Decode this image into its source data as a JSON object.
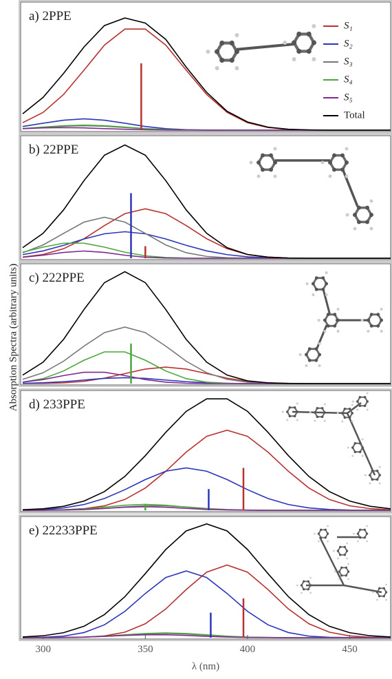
{
  "ylabel": "Absorption Spectra (arbitrary units)",
  "chart_data": [
    {
      "type": "line",
      "title": "a) 2PPE",
      "legend": "upper right",
      "x": [
        290,
        300,
        310,
        320,
        330,
        340,
        350,
        360,
        370,
        380,
        390,
        400,
        410,
        420,
        430,
        440,
        450,
        460,
        470
      ],
      "xlim": [
        289,
        470
      ],
      "ylim": [
        0,
        1
      ],
      "series": [
        {
          "name": "S₁",
          "color": "#b8312f",
          "values": [
            0.059,
            0.141,
            0.283,
            0.476,
            0.675,
            0.802,
            0.802,
            0.675,
            0.476,
            0.283,
            0.141,
            0.059,
            0.021,
            0.006,
            0.002,
            0,
            0,
            0,
            0
          ]
        },
        {
          "name": "S₂",
          "color": "#2a35b8",
          "values": [
            0.029,
            0.055,
            0.079,
            0.09,
            0.079,
            0.055,
            0.029,
            0.012,
            0.004,
            0.001,
            0,
            0,
            0,
            0,
            0,
            0,
            0,
            0,
            0
          ]
        },
        {
          "name": "S₃",
          "color": "#777777",
          "values": [
            0.011,
            0.021,
            0.031,
            0.035,
            0.031,
            0.021,
            0.011,
            0.005,
            0.002,
            0,
            0,
            0,
            0,
            0,
            0,
            0,
            0,
            0,
            0
          ]
        },
        {
          "name": "S₄",
          "color": "#4aa63a",
          "values": [
            0.013,
            0.024,
            0.035,
            0.04,
            0.035,
            0.024,
            0.013,
            0.005,
            0.002,
            0,
            0,
            0,
            0,
            0,
            0,
            0,
            0,
            0,
            0
          ]
        },
        {
          "name": "S₅",
          "color": "#7d2a8e",
          "values": [
            0.012,
            0.018,
            0.02,
            0.018,
            0.012,
            0.007,
            0.003,
            0.001,
            0,
            0,
            0,
            0,
            0,
            0,
            0,
            0,
            0,
            0,
            0
          ]
        },
        {
          "name": "Total",
          "color": "#000000",
          "values": [
            0.13,
            0.26,
            0.45,
            0.66,
            0.83,
            0.89,
            0.85,
            0.72,
            0.5,
            0.3,
            0.15,
            0.065,
            0.024,
            0.007,
            0.002,
            0,
            0,
            0,
            0
          ]
        }
      ],
      "sticks": {
        "x": [
          348
        ],
        "values": [
          0.53
        ],
        "colors": [
          "#b8312f"
        ]
      }
    },
    {
      "type": "line",
      "title": "b) 22PPE",
      "x": [
        290,
        300,
        310,
        320,
        330,
        340,
        350,
        360,
        370,
        380,
        390,
        400,
        410,
        420,
        430,
        440,
        450,
        460,
        470
      ],
      "xlim": [
        289,
        470
      ],
      "ylim": [
        0,
        1
      ],
      "series": [
        {
          "color": "#b8312f",
          "values": [
            0.01,
            0.031,
            0.079,
            0.162,
            0.271,
            0.37,
            0.41,
            0.37,
            0.271,
            0.162,
            0.079,
            0.031,
            0.01,
            0.002,
            0,
            0,
            0,
            0,
            0
          ]
        },
        {
          "color": "#2a35b8",
          "values": [
            0.03,
            0.061,
            0.107,
            0.16,
            0.203,
            0.22,
            0.203,
            0.16,
            0.107,
            0.061,
            0.03,
            0.012,
            0.004,
            0.001,
            0,
            0,
            0,
            0,
            0
          ]
        },
        {
          "color": "#777777",
          "values": [
            0.046,
            0.11,
            0.206,
            0.3,
            0.34,
            0.3,
            0.206,
            0.11,
            0.046,
            0.015,
            0.004,
            0.001,
            0,
            0,
            0,
            0,
            0,
            0,
            0
          ]
        },
        {
          "color": "#4aa63a",
          "values": [
            0.05,
            0.092,
            0.125,
            0.125,
            0.092,
            0.05,
            0.02,
            0.006,
            0.001,
            0,
            0,
            0,
            0,
            0,
            0,
            0,
            0,
            0,
            0
          ]
        },
        {
          "color": "#7d2a8e",
          "values": [
            0.008,
            0.025,
            0.048,
            0.06,
            0.048,
            0.025,
            0.008,
            0.002,
            0,
            0,
            0,
            0,
            0,
            0,
            0,
            0,
            0,
            0,
            0
          ]
        },
        {
          "color": "#000000",
          "values": [
            0.088,
            0.207,
            0.401,
            0.644,
            0.855,
            0.94,
            0.855,
            0.644,
            0.401,
            0.207,
            0.088,
            0.031,
            0.009,
            0.002,
            0,
            0,
            0,
            0,
            0
          ]
        }
      ],
      "sticks": {
        "x": [
          343,
          350
        ],
        "values": [
          0.54,
          0.1
        ],
        "colors": [
          "#2a35b8",
          "#b8312f"
        ]
      }
    },
    {
      "type": "line",
      "title": "c) 222PPE",
      "x": [
        290,
        300,
        310,
        320,
        330,
        340,
        350,
        360,
        370,
        380,
        390,
        400,
        410,
        420,
        430,
        440,
        450,
        460,
        470
      ],
      "xlim": [
        289,
        470
      ],
      "ylim": [
        0,
        1
      ],
      "series": [
        {
          "color": "#b8312f",
          "values": [
            0.001,
            0.002,
            0.006,
            0.019,
            0.046,
            0.085,
            0.123,
            0.14,
            0.123,
            0.085,
            0.046,
            0.019,
            0.006,
            0.002,
            0,
            0,
            0,
            0,
            0
          ]
        },
        {
          "color": "#2a35b8",
          "values": [
            0.002,
            0.007,
            0.016,
            0.03,
            0.044,
            0.05,
            0.044,
            0.03,
            0.016,
            0.007,
            0.002,
            0,
            0,
            0,
            0,
            0,
            0,
            0,
            0
          ]
        },
        {
          "color": "#777777",
          "values": [
            0.036,
            0.092,
            0.19,
            0.318,
            0.433,
            0.48,
            0.433,
            0.318,
            0.19,
            0.092,
            0.036,
            0.012,
            0.003,
            0.001,
            0,
            0,
            0,
            0,
            0
          ]
        },
        {
          "color": "#4aa63a",
          "values": [
            0.012,
            0.042,
            0.107,
            0.198,
            0.269,
            0.269,
            0.198,
            0.107,
            0.042,
            0.012,
            0.003,
            0,
            0,
            0,
            0,
            0,
            0,
            0,
            0
          ]
        },
        {
          "color": "#7d2a8e",
          "values": [
            0.012,
            0.034,
            0.068,
            0.096,
            0.096,
            0.068,
            0.034,
            0.012,
            0.003,
            0,
            0,
            0,
            0,
            0,
            0,
            0,
            0,
            0,
            0
          ]
        },
        {
          "color": "#000000",
          "values": [
            0.072,
            0.182,
            0.375,
            0.629,
            0.857,
            0.95,
            0.857,
            0.629,
            0.375,
            0.182,
            0.072,
            0.023,
            0.006,
            0.001,
            0,
            0,
            0,
            0,
            0
          ]
        }
      ],
      "sticks": {
        "x": [
          343
        ],
        "values": [
          0.34
        ],
        "colors": [
          "#4aa63a"
        ]
      }
    },
    {
      "type": "line",
      "title": "d) 233PPE",
      "x": [
        290,
        300,
        310,
        320,
        330,
        340,
        350,
        360,
        370,
        380,
        390,
        400,
        410,
        420,
        430,
        440,
        450,
        460,
        470
      ],
      "xlim": [
        289,
        470
      ],
      "ylim": [
        0,
        1
      ],
      "series": [
        {
          "color": "#b8312f",
          "values": [
            0,
            0.001,
            0.004,
            0.014,
            0.038,
            0.092,
            0.189,
            0.331,
            0.494,
            0.628,
            0.68,
            0.628,
            0.494,
            0.331,
            0.189,
            0.092,
            0.038,
            0.014,
            0.004
          ]
        },
        {
          "color": "#2a35b8",
          "values": [
            0.002,
            0.007,
            0.02,
            0.049,
            0.1,
            0.175,
            0.261,
            0.332,
            0.36,
            0.332,
            0.261,
            0.175,
            0.1,
            0.049,
            0.02,
            0.007,
            0.002,
            0.001,
            0
          ]
        },
        {
          "color": "#777777",
          "values": [
            0,
            0,
            0.002,
            0.006,
            0.015,
            0.028,
            0.038,
            0.038,
            0.028,
            0.015,
            0.006,
            0.002,
            0,
            0,
            0,
            0,
            0,
            0,
            0
          ]
        },
        {
          "color": "#4aa63a",
          "values": [
            0,
            0.001,
            0.004,
            0.012,
            0.027,
            0.043,
            0.05,
            0.043,
            0.027,
            0.012,
            0.004,
            0.001,
            0,
            0,
            0,
            0,
            0,
            0,
            0
          ]
        },
        {
          "color": "#7d2a8e",
          "values": [
            0,
            0.001,
            0.003,
            0.007,
            0.016,
            0.026,
            0.03,
            0.026,
            0.016,
            0.007,
            0.003,
            0.001,
            0,
            0,
            0,
            0,
            0,
            0,
            0
          ]
        },
        {
          "color": "#000000",
          "values": [
            0.005,
            0.013,
            0.034,
            0.078,
            0.159,
            0.288,
            0.464,
            0.662,
            0.84,
            0.946,
            0.946,
            0.84,
            0.662,
            0.464,
            0.288,
            0.159,
            0.078,
            0.034,
            0.013
          ]
        }
      ],
      "sticks": {
        "x": [
          398,
          381,
          350
        ],
        "values": [
          0.36,
          0.18,
          0.05
        ],
        "colors": [
          "#b8312f",
          "#2a35b8",
          "#4aa63a"
        ]
      }
    },
    {
      "type": "line",
      "title": "e) 22233PPE",
      "xlabel": "λ (nm)",
      "x": [
        290,
        300,
        310,
        320,
        330,
        340,
        350,
        360,
        370,
        380,
        390,
        400,
        410,
        420,
        430,
        440,
        450,
        460,
        470
      ],
      "xlim": [
        289,
        470
      ],
      "ylim": [
        0,
        1
      ],
      "xticks": [
        300,
        350,
        400,
        450
      ],
      "series": [
        {
          "color": "#b8312f",
          "values": [
            0,
            0,
            0.001,
            0.004,
            0.015,
            0.046,
            0.117,
            0.241,
            0.404,
            0.55,
            0.61,
            0.55,
            0.404,
            0.241,
            0.117,
            0.046,
            0.015,
            0.004,
            0.001
          ]
        },
        {
          "color": "#2a35b8",
          "values": [
            0.001,
            0.003,
            0.013,
            0.043,
            0.108,
            0.221,
            0.371,
            0.505,
            0.56,
            0.505,
            0.371,
            0.221,
            0.108,
            0.043,
            0.013,
            0.003,
            0.001,
            0,
            0
          ]
        },
        {
          "color": "#777777",
          "values": [
            0,
            0,
            0.002,
            0.005,
            0.011,
            0.021,
            0.031,
            0.035,
            0.031,
            0.021,
            0.011,
            0.005,
            0.002,
            0,
            0,
            0,
            0,
            0,
            0
          ]
        },
        {
          "color": "#4aa63a",
          "values": [
            0,
            0.001,
            0.002,
            0.005,
            0.013,
            0.024,
            0.035,
            0.04,
            0.035,
            0.024,
            0.013,
            0.005,
            0.002,
            0,
            0,
            0,
            0,
            0,
            0
          ]
        },
        {
          "color": "#7d2a8e",
          "values": [
            0,
            0.001,
            0.002,
            0.005,
            0.011,
            0.019,
            0.024,
            0.024,
            0.019,
            0.011,
            0.005,
            0.002,
            0.001,
            0,
            0,
            0,
            0,
            0,
            0
          ]
        },
        {
          "color": "#000000",
          "values": [
            0.006,
            0.016,
            0.042,
            0.096,
            0.194,
            0.344,
            0.538,
            0.74,
            0.896,
            0.955,
            0.896,
            0.74,
            0.538,
            0.344,
            0.194,
            0.096,
            0.042,
            0.016,
            0.006
          ]
        }
      ],
      "sticks": {
        "x": [
          398,
          382
        ],
        "values": [
          0.33,
          0.21
        ],
        "colors": [
          "#b8312f",
          "#2a35b8"
        ]
      }
    }
  ]
}
